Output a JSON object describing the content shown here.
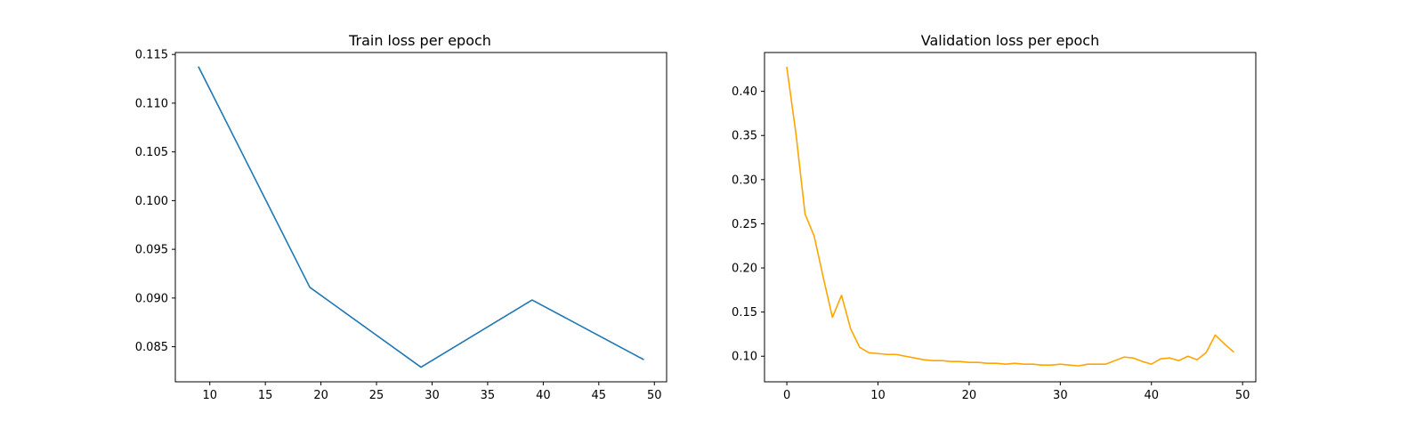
{
  "chart_data": [
    {
      "type": "line",
      "title": "Train loss per epoch",
      "xlabel": "",
      "ylabel": "",
      "xlim": [
        6.9,
        51.1
      ],
      "ylim": [
        0.0814,
        0.1152
      ],
      "xticks": [
        10,
        15,
        20,
        25,
        30,
        35,
        40,
        45,
        50
      ],
      "yticks": [
        0.085,
        0.09,
        0.095,
        0.1,
        0.105,
        0.11,
        0.115
      ],
      "ytick_decimals": 3,
      "grid": false,
      "legend": "none",
      "series": [
        {
          "color": "#1f77b4",
          "x": [
            9,
            19,
            29,
            39,
            49
          ],
          "y": [
            0.1137,
            0.0911,
            0.0829,
            0.0898,
            0.0837
          ]
        }
      ]
    },
    {
      "type": "line",
      "title": "Validation loss per epoch",
      "xlabel": "",
      "ylabel": "",
      "xlim": [
        -2.45,
        51.45
      ],
      "ylim": [
        0.071,
        0.444
      ],
      "xticks": [
        0,
        10,
        20,
        30,
        40,
        50
      ],
      "yticks": [
        0.1,
        0.15,
        0.2,
        0.25,
        0.3,
        0.35,
        0.4
      ],
      "ytick_decimals": 2,
      "grid": false,
      "legend": "none",
      "series": [
        {
          "color": "#ffa500",
          "x": [
            0,
            1,
            2,
            3,
            4,
            5,
            6,
            7,
            8,
            9,
            10,
            11,
            12,
            13,
            14,
            15,
            16,
            17,
            18,
            19,
            20,
            21,
            22,
            23,
            24,
            25,
            26,
            27,
            28,
            29,
            30,
            31,
            32,
            33,
            34,
            35,
            36,
            37,
            38,
            39,
            40,
            41,
            42,
            43,
            44,
            45,
            46,
            47,
            48,
            49
          ],
          "y": [
            0.427,
            0.352,
            0.261,
            0.236,
            0.189,
            0.144,
            0.169,
            0.131,
            0.11,
            0.104,
            0.103,
            0.102,
            0.102,
            0.1,
            0.098,
            0.096,
            0.095,
            0.095,
            0.094,
            0.094,
            0.093,
            0.093,
            0.092,
            0.092,
            0.091,
            0.092,
            0.091,
            0.091,
            0.09,
            0.09,
            0.091,
            0.09,
            0.089,
            0.091,
            0.091,
            0.091,
            0.095,
            0.099,
            0.098,
            0.094,
            0.091,
            0.097,
            0.098,
            0.095,
            0.1,
            0.096,
            0.104,
            0.124,
            0.114,
            0.105
          ]
        }
      ]
    }
  ]
}
